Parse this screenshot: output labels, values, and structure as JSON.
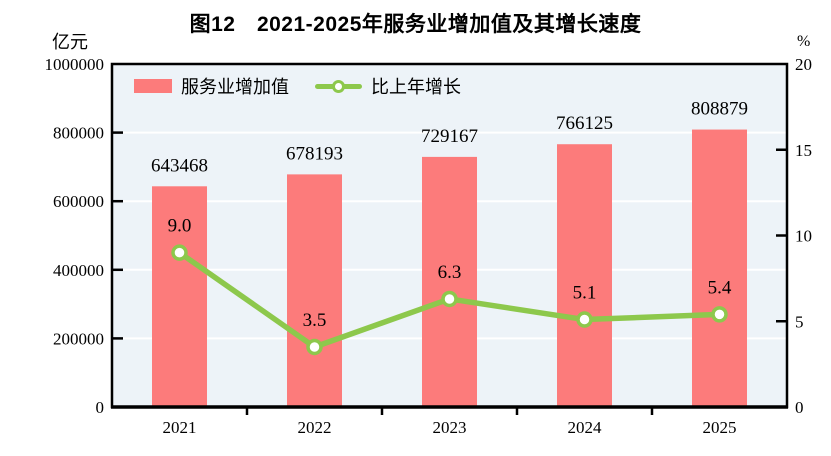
{
  "title": "图12　2021-2025年服务业增加值及其增长速度",
  "axes": {
    "left": {
      "unit": "亿元",
      "ticks": [
        0,
        200000,
        400000,
        600000,
        800000,
        1000000
      ],
      "max": 1000000
    },
    "right": {
      "unit": "%",
      "ticks": [
        0,
        5,
        10,
        15,
        20
      ],
      "max": 20
    }
  },
  "legend": {
    "bar_label": "服务业增加值",
    "line_label": "比上年增长"
  },
  "colors": {
    "bar": "#fc7b7b",
    "line": "#8dc84c",
    "marker_fill": "#ffffff",
    "plot_bg": "#edf3f8",
    "grid": "#ffffff",
    "axis": "#000000",
    "text": "#000000"
  },
  "chart_data": {
    "type": "bar",
    "categories": [
      "2021",
      "2022",
      "2023",
      "2024",
      "2025"
    ],
    "series": [
      {
        "name": "服务业增加值",
        "type": "bar",
        "axis": "left",
        "values": [
          643468,
          678193,
          729167,
          766125,
          808879
        ]
      },
      {
        "name": "比上年增长",
        "type": "line",
        "axis": "right",
        "values": [
          9.0,
          3.5,
          6.3,
          5.1,
          5.4
        ]
      }
    ],
    "title": "图12　2021-2025年服务业增加值及其增长速度",
    "xlabel": "",
    "ylabel_left": "亿元",
    "ylabel_right": "%",
    "left_ylim": [
      0,
      1000000
    ],
    "right_ylim": [
      0,
      20
    ],
    "grid": true,
    "gridline_values_left": [
      200000,
      400000,
      600000,
      800000
    ],
    "legend_position": "top-left-inside"
  }
}
